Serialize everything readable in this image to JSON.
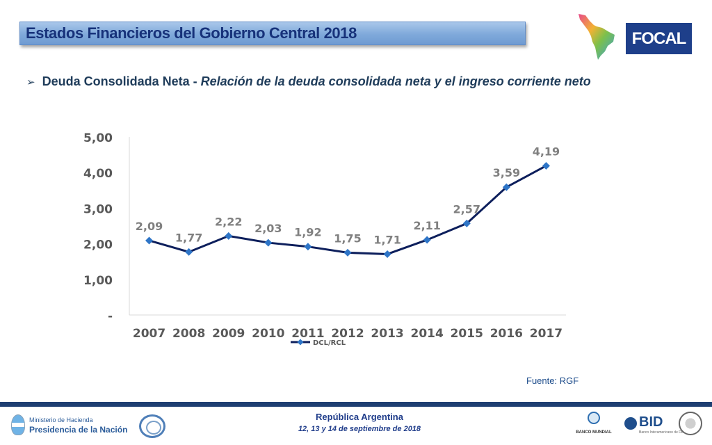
{
  "header": {
    "title": "Estados Financieros del Gobierno Central 2018",
    "logo_text": "FOCAL"
  },
  "subtitle": {
    "bold": "Deuda Consolidada Neta - ",
    "italic": "Relación de la deuda consolidada neta y el ingreso corriente neto"
  },
  "chart_data": {
    "type": "line",
    "categories": [
      "2007",
      "2008",
      "2009",
      "2010",
      "2011",
      "2012",
      "2013",
      "2014",
      "2015",
      "2016",
      "2017"
    ],
    "series": [
      {
        "name": "DCL/RCL",
        "values": [
          2.09,
          1.77,
          2.22,
          2.03,
          1.92,
          1.75,
          1.71,
          2.11,
          2.57,
          3.59,
          4.19
        ]
      }
    ],
    "data_labels": [
      "2,09",
      "1,77",
      "2,22",
      "2,03",
      "1,92",
      "1,75",
      "1,71",
      "2,11",
      "2,57",
      "3,59",
      "4,19"
    ],
    "y_ticks": [
      0,
      1,
      2,
      3,
      4,
      5
    ],
    "y_tick_labels": [
      "-",
      "1,00",
      "2,00",
      "3,00",
      "4,00",
      "5,00"
    ],
    "ylim": [
      0,
      5
    ],
    "grid": false,
    "legend_position": "bottom",
    "colors": {
      "line": "#0d1f5c",
      "marker": "#2e75c7",
      "axis_text": "#595959",
      "label_text": "#808080"
    }
  },
  "source": "Fuente: RGF",
  "footer": {
    "ministry_line1": "Ministerio de Hacienda",
    "ministry_line2": "Presidencia de la Nación",
    "center_line1": "República Argentina",
    "center_line2": "12, 13 y 14 de septiembre de 2018",
    "worldbank_label": "BANCO MUNDIAL",
    "bid_label": "BID",
    "bid_sub": "Banco Interamericano de Desarrollo"
  }
}
